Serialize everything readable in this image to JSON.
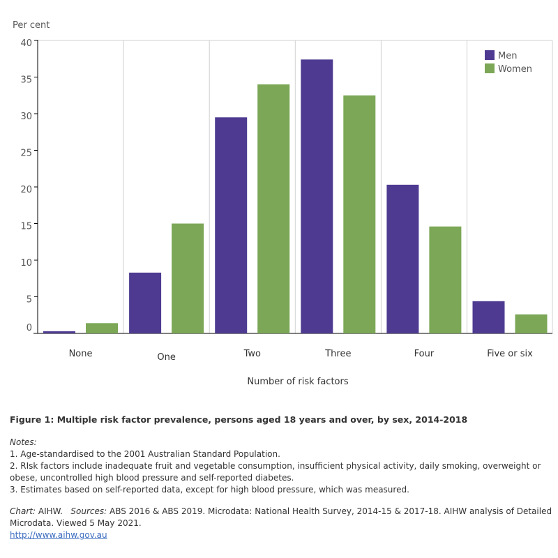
{
  "chart_data": {
    "type": "bar",
    "ylabel": "Per cent",
    "xlabel": "Number of risk factors",
    "categories": [
      "None",
      "One",
      "Two",
      "Three",
      "Four",
      "Five or six"
    ],
    "series": [
      {
        "name": "Men",
        "color": "#4e3b91",
        "values": [
          0.3,
          8.3,
          29.5,
          37.4,
          20.3,
          4.4
        ]
      },
      {
        "name": "Women",
        "color": "#7ba756",
        "values": [
          1.4,
          15.0,
          34.0,
          32.5,
          14.6,
          2.6
        ]
      }
    ],
    "ylim": [
      0,
      40
    ],
    "yticks": [
      0,
      5,
      10,
      15,
      20,
      25,
      30,
      35,
      40
    ],
    "grid": false,
    "legend": "top-right"
  },
  "caption": {
    "title": "Figure 1: Multiple risk factor prevalence, persons aged 18 years and over, by sex, 2014-2018",
    "notes_label": "Notes:",
    "notes": [
      "1. Age-standardised to the 2001 Australian Standard Population.",
      "2. RIsk factors include inadequate fruit and vegetable consumption, insufficient physical activity, daily smoking, overweight or obese, uncontrolled high blood pressure and self-reported diabetes.",
      "3. Estimates based on self-reported data, except for high blood pressure, which was measured."
    ],
    "chart_label": "Chart:",
    "chart_value": "AIHW.",
    "sources_label": "Sources:",
    "sources_value": "ABS 2016 & ABS 2019. Microdata: National Health Survey, 2014-15 & 2017-18. AIHW analysis of Detailed Microdata. Viewed 5 May 2021.",
    "link": "http://www.aihw.gov.au"
  }
}
